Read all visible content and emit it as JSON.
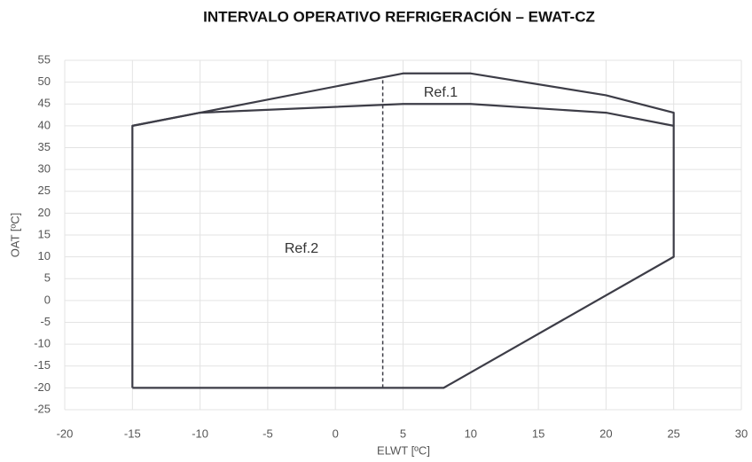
{
  "chart_data": {
    "type": "line",
    "title": "INTERVALO OPERATIVO REFRIGERACIÓN – EWAT-CZ",
    "x_label": "ELWT [ºC]",
    "y_label": "OAT [ºC]",
    "xlim": [
      -20,
      30
    ],
    "xticks": [
      -20,
      -15,
      -10,
      -5,
      0,
      5,
      10,
      15,
      20,
      25,
      30
    ],
    "ylim": [
      -25,
      55
    ],
    "yticks": [
      -25,
      -20,
      -15,
      -10,
      -5,
      0,
      5,
      10,
      15,
      20,
      25,
      30,
      35,
      40,
      45,
      50,
      55
    ],
    "grid": true,
    "annotations": [
      "Ref.1",
      "Ref.2"
    ],
    "series": [
      {
        "color": "#3d3d47",
        "dashed": false,
        "x": [
          -15,
          -15,
          -10,
          5,
          10,
          20,
          25,
          25,
          8,
          -15
        ],
        "values": [
          -20,
          40,
          43,
          52,
          52,
          47,
          43,
          10,
          -20,
          -20
        ]
      },
      {
        "color": "#3d3d47",
        "dashed": false,
        "x": [
          -15,
          -10,
          5,
          10,
          20,
          25
        ],
        "values": [
          40,
          43,
          45,
          45,
          43,
          40
        ]
      },
      {
        "color": "#3d3d47",
        "dashed": true,
        "x": [
          3.5,
          3.5
        ],
        "values": [
          -20,
          51
        ]
      }
    ]
  }
}
